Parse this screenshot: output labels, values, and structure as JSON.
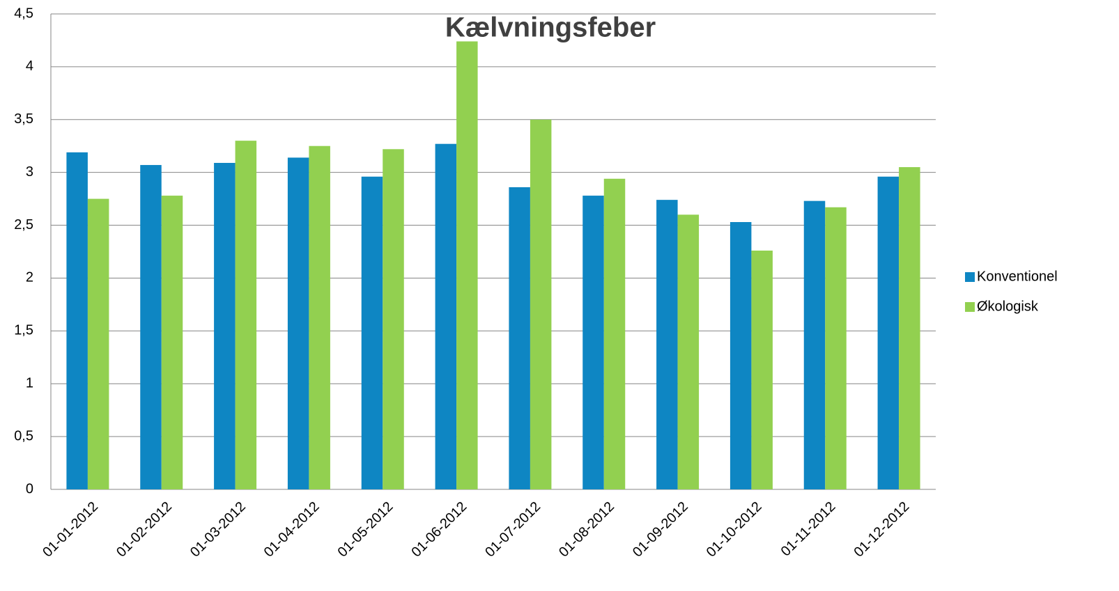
{
  "chart_data": {
    "type": "bar",
    "title": "Kælvningsfeber",
    "categories": [
      "01-01-2012",
      "01-02-2012",
      "01-03-2012",
      "01-04-2012",
      "01-05-2012",
      "01-06-2012",
      "01-07-2012",
      "01-08-2012",
      "01-09-2012",
      "01-10-2012",
      "01-11-2012",
      "01-12-2012"
    ],
    "series": [
      {
        "name": "Konventionel",
        "color": "#0e86c3",
        "values": [
          3.19,
          3.07,
          3.09,
          3.14,
          2.96,
          3.27,
          2.86,
          2.78,
          2.74,
          2.53,
          2.73,
          2.96
        ]
      },
      {
        "name": "Økologisk",
        "color": "#92d050",
        "values": [
          2.75,
          2.78,
          3.3,
          3.25,
          3.22,
          4.24,
          3.5,
          2.94,
          2.6,
          2.26,
          2.67,
          3.05
        ]
      }
    ],
    "ylim": [
      0,
      4.5
    ],
    "yticks": [
      0,
      {
        "value": 0.5,
        "label": "0,5"
      },
      1,
      {
        "value": 1.5,
        "label": "1,5"
      },
      2,
      {
        "value": 2.5,
        "label": "2,5"
      },
      3,
      {
        "value": 3.5,
        "label": "3,5"
      },
      4,
      {
        "value": 4.5,
        "label": "4,5"
      }
    ],
    "grid": true,
    "legend": "right"
  }
}
